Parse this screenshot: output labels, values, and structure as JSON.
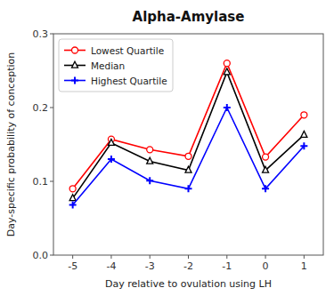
{
  "chart_data": {
    "type": "line",
    "title": "Alpha-Amylase",
    "x_label": "Day relative to ovulation using LH",
    "y_label": "Day-specific probability of conception",
    "x": [
      -5,
      -4,
      -3,
      -2,
      -1,
      0,
      1
    ],
    "series": [
      {
        "name": "Lowest Quartile",
        "color": "#ff0000",
        "marker": "circle",
        "values": [
          0.09,
          0.157,
          0.143,
          0.134,
          0.26,
          0.133,
          0.19
        ]
      },
      {
        "name": "Median",
        "color": "#000000",
        "marker": "triangle",
        "values": [
          0.077,
          0.152,
          0.127,
          0.115,
          0.248,
          0.115,
          0.163
        ]
      },
      {
        "name": "Highest Quartile",
        "color": "#0000ff",
        "marker": "plus",
        "values": [
          0.068,
          0.13,
          0.101,
          0.09,
          0.2,
          0.09,
          0.148
        ]
      }
    ],
    "xlim": [
      -5.5,
      1.5
    ],
    "xticks": [
      -5,
      -4,
      -3,
      -2,
      -1,
      0,
      1
    ],
    "ylim": [
      0.0,
      0.3
    ],
    "yticks": [
      {
        "value": 0.0,
        "label": "0.0"
      },
      0.1,
      0.2,
      0.3
    ],
    "legend": "upper left",
    "grid": false
  }
}
